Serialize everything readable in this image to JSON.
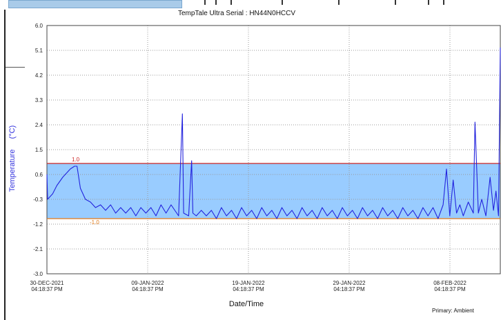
{
  "chart_data": {
    "type": "line",
    "title": "TempTale Ultra  Serial : HN44N0HCCV",
    "xlabel": "Date/Time",
    "ylabel": "Temperature",
    "ylabel_unit": "(°C)",
    "footer_note": "Primary: Ambient",
    "ylim": [
      -3.0,
      6.0
    ],
    "y_ticks": [
      "6.0",
      "5.1",
      "4.2",
      "3.3",
      "2.4",
      "1.5",
      "0.6",
      "-0.3",
      "-1.2",
      "-2.1",
      "-3.0"
    ],
    "x_ticks": [
      {
        "date": "30-DEC-2021",
        "time": "04:18:37 PM"
      },
      {
        "date": "09-JAN-2022",
        "time": "04:18:37 PM"
      },
      {
        "date": "19-JAN-2022",
        "time": "04:18:37 PM"
      },
      {
        "date": "29-JAN-2022",
        "time": "04:18:37 PM"
      },
      {
        "date": "08-FEB-2022",
        "time": "04:18:37 PM"
      }
    ],
    "x_start": "2021-12-30 16:18",
    "x_end": "2022-02-13 16:18",
    "grid": true,
    "upper_limit": {
      "value": 1.0,
      "label": "1.0",
      "color": "#cc2222"
    },
    "lower_limit": {
      "value": -1.0,
      "label": "-1.0",
      "color": "#e07a1a"
    },
    "band_color": "#99ccff",
    "series": [
      {
        "color": "#2222dd",
        "x": [
          "2021-12-30 16:18",
          "2021-12-30 18:00",
          "2021-12-31 06:00",
          "2021-12-31 16:00",
          "2022-01-01 06:00",
          "2022-01-02 00:00",
          "2022-01-02 10:00",
          "2022-01-02 16:00",
          "2022-01-03 00:00",
          "2022-01-03 12:00",
          "2022-01-04 00:00",
          "2022-01-04 12:00",
          "2022-01-05 00:00",
          "2022-01-05 12:00",
          "2022-01-06 00:00",
          "2022-01-06 12:00",
          "2022-01-07 00:00",
          "2022-01-07 12:00",
          "2022-01-08 00:00",
          "2022-01-08 12:00",
          "2022-01-09 00:00",
          "2022-01-09 12:00",
          "2022-01-10 00:00",
          "2022-01-10 12:00",
          "2022-01-11 00:00",
          "2022-01-11 12:00",
          "2022-01-12 00:00",
          "2022-01-12 18:00",
          "2022-01-13 03:00",
          "2022-01-13 06:00",
          "2022-01-13 18:00",
          "2022-01-14 01:00",
          "2022-01-14 04:00",
          "2022-01-14 12:00",
          "2022-01-15 00:00",
          "2022-01-15 12:00",
          "2022-01-16 00:00",
          "2022-01-16 12:00",
          "2022-01-17 00:00",
          "2022-01-17 12:00",
          "2022-01-18 00:00",
          "2022-01-18 12:00",
          "2022-01-19 00:00",
          "2022-01-19 12:00",
          "2022-01-20 00:00",
          "2022-01-20 12:00",
          "2022-01-21 00:00",
          "2022-01-21 12:00",
          "2022-01-22 00:00",
          "2022-01-22 12:00",
          "2022-01-23 00:00",
          "2022-01-23 12:00",
          "2022-01-24 00:00",
          "2022-01-24 12:00",
          "2022-01-25 00:00",
          "2022-01-25 12:00",
          "2022-01-26 00:00",
          "2022-01-26 12:00",
          "2022-01-27 00:00",
          "2022-01-27 12:00",
          "2022-01-28 00:00",
          "2022-01-28 12:00",
          "2022-01-29 00:00",
          "2022-01-29 12:00",
          "2022-01-30 00:00",
          "2022-01-30 12:00",
          "2022-01-31 00:00",
          "2022-01-31 12:00",
          "2022-02-01 00:00",
          "2022-02-01 12:00",
          "2022-02-02 00:00",
          "2022-02-02 12:00",
          "2022-02-03 00:00",
          "2022-02-03 12:00",
          "2022-02-04 00:00",
          "2022-02-04 12:00",
          "2022-02-05 00:00",
          "2022-02-05 12:00",
          "2022-02-06 00:00",
          "2022-02-06 12:00",
          "2022-02-07 00:00",
          "2022-02-07 12:00",
          "2022-02-08 00:00",
          "2022-02-08 08:00",
          "2022-02-08 16:00",
          "2022-02-09 00:00",
          "2022-02-09 08:00",
          "2022-02-09 16:00",
          "2022-02-10 00:00",
          "2022-02-10 12:00",
          "2022-02-11 00:00",
          "2022-02-11 04:00",
          "2022-02-11 12:00",
          "2022-02-11 20:00",
          "2022-02-12 06:00",
          "2022-02-12 16:00",
          "2022-02-13 00:00",
          "2022-02-13 06:00",
          "2022-02-13 12:00",
          "2022-02-13 16:18"
        ],
        "values": [
          0.6,
          -0.3,
          -0.1,
          0.2,
          0.5,
          0.8,
          0.9,
          0.9,
          0.1,
          -0.3,
          -0.4,
          -0.6,
          -0.5,
          -0.7,
          -0.5,
          -0.8,
          -0.6,
          -0.8,
          -0.6,
          -0.9,
          -0.6,
          -0.8,
          -0.6,
          -0.9,
          -0.5,
          -0.8,
          -0.5,
          -0.9,
          2.8,
          -0.8,
          -0.9,
          1.1,
          -0.8,
          -0.9,
          -0.7,
          -0.9,
          -0.7,
          -1.0,
          -0.6,
          -0.9,
          -0.7,
          -1.0,
          -0.6,
          -0.9,
          -0.7,
          -1.0,
          -0.6,
          -0.9,
          -0.7,
          -1.0,
          -0.6,
          -0.9,
          -0.7,
          -1.0,
          -0.6,
          -0.9,
          -0.7,
          -1.0,
          -0.6,
          -0.9,
          -0.7,
          -1.0,
          -0.6,
          -0.9,
          -0.7,
          -1.0,
          -0.6,
          -0.9,
          -0.7,
          -1.0,
          -0.6,
          -0.9,
          -0.7,
          -1.0,
          -0.6,
          -0.9,
          -0.7,
          -1.0,
          -0.6,
          -0.9,
          -0.6,
          -1.0,
          -0.5,
          0.8,
          -0.9,
          0.4,
          -0.8,
          -0.5,
          -0.9,
          -0.4,
          -0.8,
          2.5,
          -0.8,
          -0.3,
          -0.9,
          0.5,
          -0.7,
          0.0,
          -0.9,
          5.2
        ]
      }
    ]
  }
}
